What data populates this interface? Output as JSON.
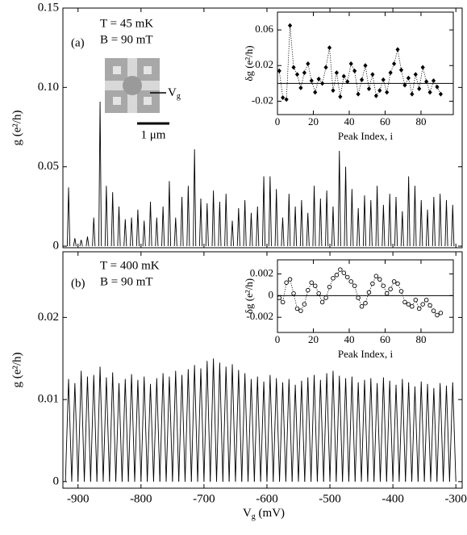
{
  "chart_data": [
    {
      "type": "spectrum",
      "label": "(a)",
      "annotations": [
        "T = 45 mK",
        "B = 90 mT"
      ],
      "image_labels": {
        "scale": "1 μm",
        "gate": "V",
        "gate_sub": "g"
      },
      "y_label": "g (e²/h)",
      "x": [
        -915,
        -905,
        -895,
        -885,
        -875,
        -865,
        -855,
        -845,
        -835,
        -825,
        -815,
        -805,
        -795,
        -785,
        -775,
        -765,
        -755,
        -745,
        -735,
        -725,
        -715,
        -705,
        -695,
        -685,
        -675,
        -665,
        -655,
        -645,
        -635,
        -625,
        -615,
        -605,
        -595,
        -585,
        -575,
        -565,
        -555,
        -545,
        -535,
        -525,
        -515,
        -505,
        -495,
        -485,
        -475,
        -465,
        -455,
        -445,
        -435,
        -425,
        -415,
        -405,
        -395,
        -385,
        -375,
        -365,
        -355,
        -345,
        -335,
        -325,
        -315,
        -305
      ],
      "values": [
        0.037,
        0.005,
        0.004,
        0.006,
        0.018,
        0.091,
        0.038,
        0.034,
        0.025,
        0.017,
        0.018,
        0.023,
        0.016,
        0.028,
        0.018,
        0.025,
        0.041,
        0.018,
        0.031,
        0.038,
        0.061,
        0.03,
        0.027,
        0.035,
        0.028,
        0.033,
        0.016,
        0.024,
        0.029,
        0.021,
        0.025,
        0.044,
        0.044,
        0.036,
        0.018,
        0.033,
        0.025,
        0.029,
        0.021,
        0.038,
        0.03,
        0.035,
        0.025,
        0.06,
        0.05,
        0.036,
        0.024,
        0.032,
        0.029,
        0.038,
        0.026,
        0.033,
        0.031,
        0.022,
        0.044,
        0.038,
        0.029,
        0.023,
        0.031,
        0.033,
        0.029,
        0.026
      ],
      "color": "#000000",
      "xlim": [
        -924,
        -290
      ],
      "ylim": [
        -0.001,
        0.15
      ],
      "yticks": [
        0,
        0.05,
        {
          "value": 0.1,
          "label": "0.10"
        },
        0.15
      ]
    },
    {
      "type": "scatter",
      "marker": "diamond",
      "line_style": "dotted",
      "reference_line": 0,
      "x_label": "Peak Index, i",
      "y_label": "δg (e²/h)",
      "x": [
        1,
        3,
        5,
        7,
        9,
        11,
        13,
        15,
        17,
        19,
        21,
        23,
        25,
        27,
        29,
        31,
        33,
        35,
        37,
        39,
        41,
        43,
        45,
        47,
        49,
        51,
        53,
        55,
        57,
        59,
        61,
        63,
        65,
        67,
        69,
        71,
        73,
        75,
        77,
        79,
        81,
        83,
        85,
        87,
        89,
        91
      ],
      "values": [
        0.014,
        -0.016,
        -0.018,
        0.065,
        0.018,
        0.01,
        -0.005,
        0.012,
        0.022,
        0.003,
        -0.01,
        0.005,
        0.0,
        0.018,
        0.04,
        -0.008,
        0.012,
        -0.015,
        0.008,
        0.002,
        0.022,
        0.014,
        -0.012,
        0.004,
        0.02,
        -0.006,
        0.01,
        -0.014,
        -0.008,
        0.004,
        -0.01,
        0.012,
        0.022,
        0.038,
        0.015,
        -0.002,
        0.006,
        -0.012,
        0.01,
        -0.006,
        0.018,
        0.002,
        -0.01,
        0.003,
        -0.004,
        -0.012
      ],
      "color": "#000000",
      "xlim": [
        0,
        98
      ],
      "xticks": [
        0,
        20,
        40,
        60,
        80
      ],
      "ylim": [
        -0.035,
        0.08
      ],
      "yticks": [
        -0.02,
        0.02,
        0.06
      ]
    },
    {
      "type": "spectrum",
      "label": "(b)",
      "annotations": [
        "T = 400 mK",
        "B = 90 mT"
      ],
      "y_label": "g (e²/h)",
      "x_label": "V",
      "x_label_sub": "g",
      "x_label_unit": " (mV)",
      "x": [
        -915,
        -905,
        -895,
        -885,
        -875,
        -865,
        -855,
        -845,
        -835,
        -825,
        -815,
        -805,
        -795,
        -785,
        -775,
        -765,
        -755,
        -745,
        -735,
        -725,
        -715,
        -705,
        -695,
        -685,
        -675,
        -665,
        -655,
        -645,
        -635,
        -625,
        -615,
        -605,
        -595,
        -585,
        -575,
        -565,
        -555,
        -545,
        -535,
        -525,
        -515,
        -505,
        -495,
        -485,
        -475,
        -465,
        -455,
        -445,
        -435,
        -425,
        -415,
        -405,
        -395,
        -385,
        -375,
        -365,
        -355,
        -345,
        -335,
        -325,
        -315,
        -305
      ],
      "values": [
        0.0125,
        0.012,
        0.0135,
        0.0128,
        0.013,
        0.014,
        0.0127,
        0.0133,
        0.012,
        0.0125,
        0.0131,
        0.0124,
        0.0128,
        0.0119,
        0.0126,
        0.0132,
        0.0128,
        0.0135,
        0.013,
        0.0137,
        0.0142,
        0.0138,
        0.0147,
        0.015,
        0.0145,
        0.014,
        0.0143,
        0.0136,
        0.0132,
        0.0125,
        0.0128,
        0.0122,
        0.013,
        0.0126,
        0.0121,
        0.0125,
        0.0118,
        0.0123,
        0.0127,
        0.013,
        0.0124,
        0.0132,
        0.0135,
        0.0129,
        0.0126,
        0.0128,
        0.0121,
        0.0124,
        0.0126,
        0.012,
        0.0127,
        0.0123,
        0.0118,
        0.0125,
        0.0121,
        0.0116,
        0.0122,
        0.0119,
        0.0114,
        0.012,
        0.0117,
        0.0121
      ],
      "color": "#000000",
      "xlim": [
        -924,
        -290
      ],
      "xticks": [
        -900,
        -800,
        -700,
        -600,
        -500,
        -400,
        -300
      ],
      "ylim": [
        -0.0008,
        0.028
      ],
      "yticks": [
        0,
        0.01,
        0.02
      ]
    },
    {
      "type": "scatter",
      "marker": "circle",
      "line_style": "dotted",
      "reference_line": 0,
      "x_label": "Peak Index, i",
      "y_label": "δg (e²/h)",
      "x": [
        1,
        3,
        5,
        7,
        9,
        11,
        13,
        15,
        17,
        19,
        21,
        23,
        25,
        27,
        29,
        31,
        33,
        35,
        37,
        39,
        41,
        43,
        45,
        47,
        49,
        51,
        53,
        55,
        57,
        59,
        61,
        63,
        65,
        67,
        69,
        71,
        73,
        75,
        77,
        79,
        81,
        83,
        85,
        87,
        89,
        91
      ],
      "values": [
        -0.0002,
        -0.0006,
        0.0012,
        0.0015,
        0.0002,
        -0.0012,
        -0.0014,
        -0.0008,
        0.0005,
        0.0012,
        0.0009,
        0.0002,
        -0.0006,
        -0.0002,
        0.0008,
        0.0016,
        0.0019,
        0.0024,
        0.0021,
        0.0017,
        0.0013,
        0.0009,
        -0.0002,
        -0.001,
        -0.0007,
        0.0003,
        0.0011,
        0.0018,
        0.0015,
        0.0009,
        0.0002,
        0.0006,
        0.0013,
        0.0011,
        0.0004,
        -0.0006,
        -0.0008,
        -0.001,
        -0.0004,
        -0.0012,
        -0.0008,
        -0.0004,
        -0.0009,
        -0.0014,
        -0.0018,
        -0.0016
      ],
      "color": "#000000",
      "xlim": [
        0,
        98
      ],
      "xticks": [
        0,
        20,
        40,
        60,
        80
      ],
      "ylim": [
        -0.0034,
        0.0033
      ],
      "yticks": [
        -0.002,
        0,
        0.002
      ]
    }
  ]
}
